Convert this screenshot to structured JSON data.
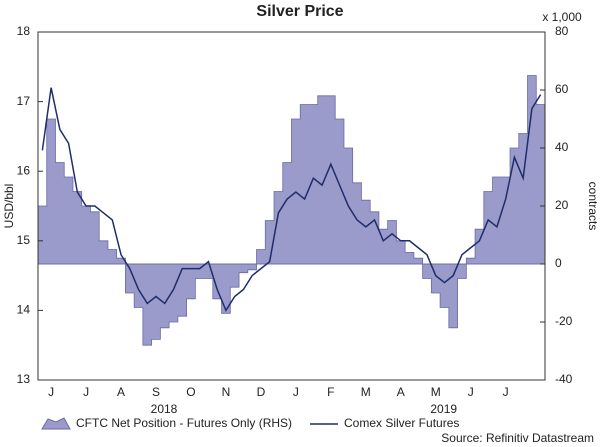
{
  "chart_data": {
    "type": "area-line",
    "title": "Silver Price",
    "y_label": "USD/bbl",
    "y2_label": "contracts",
    "y2_unit": "x 1,000",
    "categories": [
      null,
      "J",
      null,
      null,
      null,
      "J",
      null,
      null,
      null,
      "A",
      null,
      null,
      null,
      "S",
      null,
      null,
      null,
      "O",
      null,
      null,
      null,
      "N",
      null,
      null,
      null,
      "D",
      null,
      null,
      null,
      "J",
      null,
      null,
      null,
      "F",
      null,
      null,
      null,
      "M",
      null,
      null,
      null,
      "A",
      null,
      null,
      null,
      "M",
      null,
      null,
      null,
      "J",
      null,
      null,
      null,
      "J",
      null,
      null,
      null,
      null
    ],
    "year_labels": [
      "2018",
      "2019"
    ],
    "series": [
      {
        "name": "CFTC Net Position - Futures Only (RHS)",
        "type": "area",
        "axis": "y2",
        "color": "#9a9acb",
        "stroke": "#6a6aa6",
        "values": [
          20,
          50,
          35,
          30,
          25,
          20,
          18,
          8,
          5,
          2,
          -10,
          -15,
          -28,
          -26,
          -22,
          -20,
          -18,
          -12,
          -5,
          -5,
          -12,
          -17,
          -8,
          -3,
          -2,
          5,
          15,
          25,
          35,
          50,
          55,
          55,
          58,
          58,
          50,
          40,
          28,
          22,
          18,
          12,
          15,
          8,
          4,
          2,
          -5,
          -10,
          -15,
          -22,
          -5,
          2,
          12,
          25,
          30,
          30,
          40,
          45,
          65,
          55
        ]
      },
      {
        "name": "Comex Silver Futures",
        "type": "line",
        "color": "#1f2d6b",
        "values": [
          16.3,
          17.2,
          16.6,
          16.4,
          15.7,
          15.5,
          15.5,
          15.4,
          15.3,
          14.8,
          14.6,
          14.3,
          14.1,
          14.2,
          14.1,
          14.3,
          14.6,
          14.6,
          14.6,
          14.7,
          14.3,
          14.0,
          14.2,
          14.3,
          14.5,
          14.6,
          14.7,
          15.4,
          15.6,
          15.7,
          15.6,
          15.9,
          15.8,
          16.1,
          15.8,
          15.5,
          15.3,
          15.2,
          15.3,
          15.0,
          15.1,
          15.0,
          15.0,
          14.9,
          14.8,
          14.5,
          14.4,
          14.5,
          14.8,
          14.9,
          15.0,
          15.3,
          15.2,
          15.6,
          16.2,
          15.9,
          16.9,
          17.1
        ]
      }
    ],
    "ylim": [
      13,
      18
    ],
    "yticks": [
      13,
      14,
      15,
      16,
      17,
      18
    ],
    "y2lim": [
      -40,
      80
    ],
    "y2ticks": [
      -40,
      -20,
      0,
      20,
      40,
      60,
      80
    ],
    "source": "Source: Refinitiv Datastream"
  }
}
